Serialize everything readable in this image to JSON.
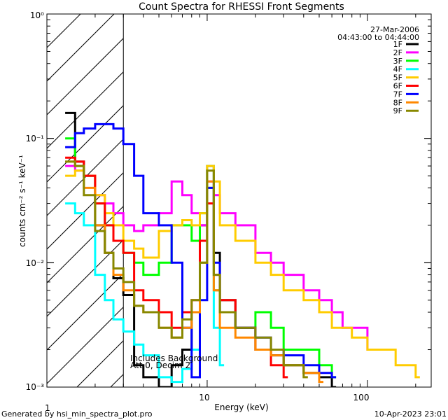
{
  "chart_data": {
    "type": "line",
    "title": "Count Spectra for RHESSI Front Segments",
    "xlabel": "Energy (keV)",
    "ylabel": "counts cm⁻² s⁻¹ keV⁻¹",
    "x_scale": "log",
    "y_scale": "log",
    "xlim": [
      1,
      250
    ],
    "ylim": [
      0.001,
      1
    ],
    "x_ticks": [
      "1",
      "10",
      "100"
    ],
    "y_ticks": [
      "10⁻³",
      "10⁻²",
      "10⁻¹",
      "10⁰"
    ],
    "date": "27-Mar-2006",
    "time_range": "04:43:00 to 04:44:00",
    "annotations": [
      "Includes Background",
      "Att 0, Decim 2"
    ],
    "shaded_region_keV": [
      1,
      3
    ],
    "footer_left": "Generated by hsi_min_spectra_plot.pro",
    "footer_right": "10-Apr-2023 23:01",
    "legend_position": "top-right",
    "series": [
      {
        "name": "1F",
        "color": "#000000",
        "x": [
          1.3,
          1.5,
          1.7,
          2.0,
          2.3,
          2.6,
          3.0,
          3.5,
          4,
          5,
          6,
          7,
          8,
          9,
          10,
          11,
          12,
          15,
          20,
          25,
          30,
          40,
          50,
          60
        ],
        "y": [
          0.16,
          0.065,
          0.05,
          0.02,
          0.012,
          0.0075,
          0.0055,
          0.0015,
          0.0012,
          0.001,
          0.0015,
          0.002,
          0.004,
          0.02,
          0.06,
          0.012,
          0.005,
          0.003,
          0.002,
          0.0018,
          0.0015,
          0.0013,
          0.0012,
          0.001
        ]
      },
      {
        "name": "2F",
        "color": "#ff00ff",
        "x": [
          1.3,
          1.5,
          1.7,
          2.0,
          2.3,
          2.6,
          3.0,
          3.5,
          4,
          5,
          6,
          7,
          8,
          9,
          10,
          11,
          12,
          15,
          20,
          25,
          30,
          40,
          50,
          60,
          70,
          80,
          100
        ],
        "y": [
          0.06,
          0.055,
          0.05,
          0.035,
          0.03,
          0.025,
          0.02,
          0.018,
          0.02,
          0.025,
          0.045,
          0.035,
          0.025,
          0.02,
          0.045,
          0.035,
          0.025,
          0.02,
          0.012,
          0.01,
          0.008,
          0.006,
          0.005,
          0.004,
          0.003,
          0.003,
          0.002
        ]
      },
      {
        "name": "3F",
        "color": "#00ff00",
        "x": [
          1.3,
          1.5,
          1.7,
          2.0,
          2.3,
          2.6,
          3.0,
          3.5,
          4,
          5,
          6,
          7,
          8,
          9,
          10,
          11,
          12,
          15,
          20,
          25,
          30,
          40,
          50,
          60
        ],
        "y": [
          0.1,
          0.06,
          0.05,
          0.03,
          0.02,
          0.015,
          0.012,
          0.01,
          0.008,
          0.01,
          0.02,
          0.02,
          0.015,
          0.025,
          0.04,
          0.006,
          0.004,
          0.003,
          0.004,
          0.003,
          0.002,
          0.002,
          0.0015,
          0.0012
        ]
      },
      {
        "name": "4F",
        "color": "#00ffff",
        "x": [
          1.3,
          1.5,
          1.7,
          2.0,
          2.3,
          2.6,
          3.0,
          3.5,
          4,
          5,
          6,
          7,
          8,
          9,
          10,
          11,
          12
        ],
        "y": [
          0.03,
          0.025,
          0.02,
          0.008,
          0.005,
          0.0035,
          0.0028,
          0.0022,
          0.0018,
          0.0012,
          0.0011,
          0.0014,
          0.002,
          0.01,
          0.06,
          0.003,
          0.0015
        ]
      },
      {
        "name": "5F",
        "color": "#ffcc00",
        "x": [
          1.3,
          1.5,
          1.7,
          2.0,
          2.3,
          2.6,
          3.0,
          3.5,
          4,
          5,
          6,
          7,
          8,
          9,
          10,
          11,
          12,
          15,
          20,
          25,
          30,
          40,
          50,
          60,
          70,
          80,
          100,
          150,
          200
        ],
        "y": [
          0.05,
          0.055,
          0.05,
          0.035,
          0.025,
          0.02,
          0.015,
          0.013,
          0.011,
          0.018,
          0.02,
          0.022,
          0.02,
          0.025,
          0.06,
          0.045,
          0.02,
          0.015,
          0.01,
          0.008,
          0.006,
          0.005,
          0.004,
          0.003,
          0.003,
          0.0025,
          0.002,
          0.0015,
          0.0012
        ]
      },
      {
        "name": "6F",
        "color": "#ff0000",
        "x": [
          1.3,
          1.5,
          1.7,
          2.0,
          2.3,
          2.6,
          3.0,
          3.5,
          4,
          5,
          6,
          7,
          8,
          9,
          10,
          11,
          12,
          15,
          20,
          25,
          30
        ],
        "y": [
          0.07,
          0.065,
          0.05,
          0.03,
          0.02,
          0.015,
          0.012,
          0.006,
          0.005,
          0.004,
          0.003,
          0.004,
          0.005,
          0.015,
          0.03,
          0.008,
          0.005,
          0.003,
          0.002,
          0.0015,
          0.0012
        ]
      },
      {
        "name": "7F",
        "color": "#0000ff",
        "x": [
          1.3,
          1.5,
          1.7,
          2.0,
          2.3,
          2.6,
          3.0,
          3.5,
          4,
          5,
          6,
          7,
          8,
          9,
          10,
          11,
          12,
          15,
          20,
          25,
          30,
          40,
          50,
          60
        ],
        "y": [
          0.085,
          0.11,
          0.12,
          0.13,
          0.13,
          0.12,
          0.09,
          0.05,
          0.025,
          0.02,
          0.01,
          0.003,
          0.0012,
          0.005,
          0.04,
          0.01,
          0.004,
          0.003,
          0.0025,
          0.002,
          0.0018,
          0.0015,
          0.0013,
          0.0012
        ]
      },
      {
        "name": "8F",
        "color": "#ff8800",
        "x": [
          1.3,
          1.5,
          1.7,
          2.0,
          2.3,
          2.6,
          3.0,
          3.5,
          4,
          5,
          6,
          7,
          8,
          9,
          10,
          11,
          12,
          15,
          20,
          25,
          30,
          40,
          50
        ],
        "y": [
          0.065,
          0.06,
          0.04,
          0.02,
          0.012,
          0.008,
          0.006,
          0.0045,
          0.004,
          0.003,
          0.0025,
          0.003,
          0.004,
          0.01,
          0.045,
          0.006,
          0.003,
          0.0025,
          0.002,
          0.0018,
          0.0015,
          0.0013,
          0.0011
        ]
      },
      {
        "name": "9F",
        "color": "#888800",
        "x": [
          1.3,
          1.5,
          1.7,
          2.0,
          2.3,
          2.6,
          3.0,
          3.5,
          4,
          5,
          6,
          7,
          8,
          9,
          10,
          11,
          12,
          15,
          20,
          25,
          30,
          40
        ],
        "y": [
          0.065,
          0.06,
          0.035,
          0.018,
          0.012,
          0.009,
          0.007,
          0.0045,
          0.004,
          0.003,
          0.0025,
          0.0035,
          0.005,
          0.01,
          0.055,
          0.008,
          0.004,
          0.003,
          0.0025,
          0.002,
          0.0015,
          0.0012
        ]
      }
    ]
  }
}
